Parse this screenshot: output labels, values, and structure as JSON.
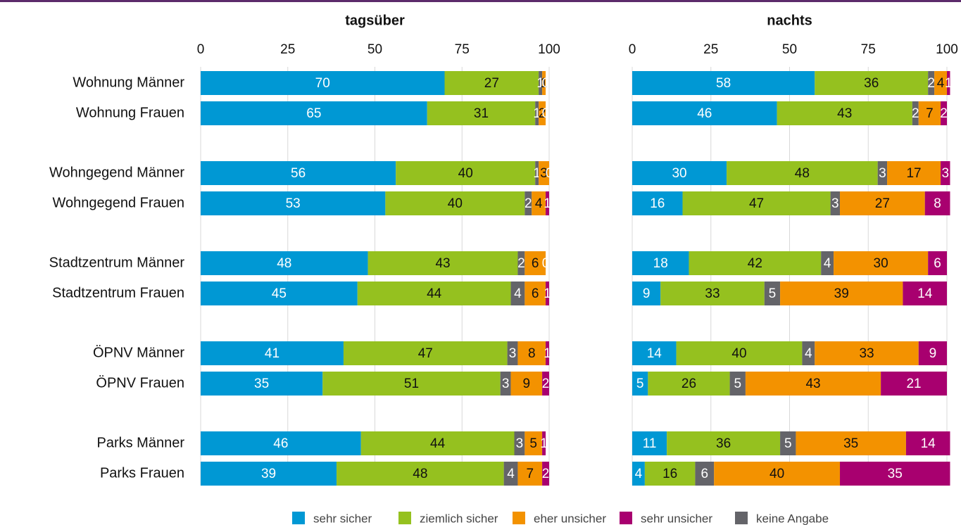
{
  "chart_data": {
    "type": "stacked-bar",
    "categories": [
      "Wohnung Männer",
      "Wohnung Frauen",
      "Wohngegend Männer",
      "Wohngegend Frauen",
      "Stadtzentrum Männer",
      "Stadtzentrum Frauen",
      "ÖPNV Männer",
      "ÖPNV Frauen",
      "Parks Männer",
      "Parks Frauen"
    ],
    "legend": [
      {
        "name": "sehr sicher",
        "color": "#0098d4"
      },
      {
        "name": "ziemlich sicher",
        "color": "#95c11f"
      },
      {
        "name": "eher unsicher",
        "color": "#f39200"
      },
      {
        "name": "sehr unsicher",
        "color": "#a8006f"
      },
      {
        "name": "keine Angabe",
        "color": "#646469"
      }
    ],
    "stack_order": [
      0,
      1,
      4,
      2,
      3
    ],
    "grid": true,
    "panels": [
      {
        "title": "tagsüber",
        "xlim": [
          0,
          100
        ],
        "xticks": [
          0,
          25,
          50,
          75,
          100
        ],
        "series": [
          [
            70,
            65,
            56,
            53,
            48,
            45,
            41,
            35,
            46,
            39
          ],
          [
            27,
            31,
            40,
            40,
            43,
            44,
            47,
            51,
            44,
            48
          ],
          [
            1,
            2,
            3,
            4,
            6,
            6,
            8,
            9,
            5,
            7
          ],
          [
            0,
            0,
            0,
            1,
            0,
            1,
            1,
            2,
            1,
            2
          ],
          [
            1,
            1,
            1,
            2,
            2,
            4,
            3,
            3,
            3,
            4
          ]
        ]
      },
      {
        "title": "nachts",
        "xlim": [
          0,
          100
        ],
        "xticks": [
          0,
          25,
          50,
          75,
          100
        ],
        "series": [
          [
            58,
            46,
            30,
            16,
            18,
            9,
            14,
            5,
            11,
            4
          ],
          [
            36,
            43,
            48,
            47,
            42,
            33,
            40,
            26,
            36,
            16
          ],
          [
            4,
            7,
            17,
            27,
            30,
            39,
            33,
            43,
            35,
            40
          ],
          [
            1,
            2,
            3,
            8,
            6,
            14,
            9,
            21,
            14,
            35
          ],
          [
            2,
            2,
            3,
            3,
            4,
            5,
            4,
            5,
            5,
            6
          ]
        ]
      }
    ]
  }
}
